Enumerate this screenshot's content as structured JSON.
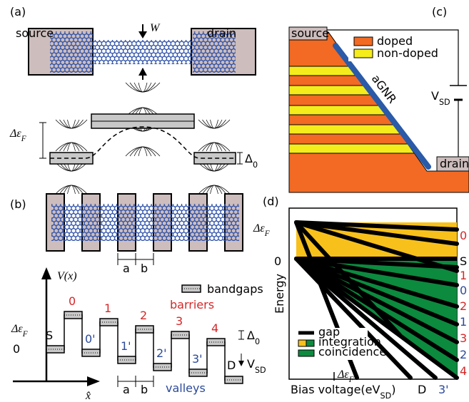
{
  "panel_a": {
    "label": "(a)",
    "source": "source",
    "drain": "drain",
    "width": "W",
    "fermi": {
      "main": "Δε",
      "sub": "F"
    },
    "gap": {
      "main": "Δ",
      "sub": "0"
    }
  },
  "panel_b": {
    "label": "(b)",
    "gate_a": "a",
    "gate_b": "b",
    "axis_y": "V(x)",
    "axis_x": "x̂",
    "legend": "bandgaps",
    "barriers": "barriers",
    "valleys": "valleys",
    "fermi": {
      "main": "Δε",
      "sub": "F"
    },
    "zero": "0",
    "gap": {
      "main": "Δ",
      "sub": "0"
    },
    "bias": {
      "main": "V",
      "sub": "SD"
    },
    "source": "S",
    "drain": "D",
    "barrier_labels": [
      "0",
      "1",
      "2",
      "3",
      "4"
    ],
    "valley_labels": [
      "0'",
      "1'",
      "2'",
      "3'"
    ],
    "period_a": "a",
    "period_b": "b"
  },
  "panel_c": {
    "label": "(c)",
    "source": "source",
    "drain": "drain",
    "legend": [
      "doped",
      "non-doped"
    ],
    "ribbon": "aGNR",
    "bias": {
      "main": "V",
      "sub": "SD"
    }
  },
  "panel_d": {
    "label": "(d)",
    "fermi": {
      "main": "Δε",
      "sub": "F"
    },
    "zero": "0",
    "y_label": "Energy",
    "legend": [
      "gap",
      "integration",
      "coincidence"
    ],
    "x_label": {
      "main": "Bias voltage(eV",
      "sub": "SD",
      "end": ")"
    },
    "x_fermi": {
      "main": "Δε",
      "sub": "F"
    },
    "x_marks": [
      "D",
      "3'"
    ],
    "right_labels": [
      "0",
      "S",
      "1",
      "0",
      "2",
      "1",
      "3",
      "2",
      "4"
    ]
  }
}
